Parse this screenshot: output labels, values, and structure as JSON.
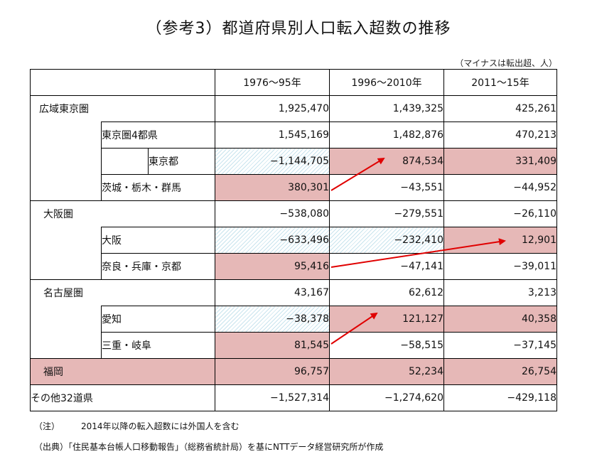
{
  "title": "（参考3）都道府県別人口転入超数の推移",
  "unit_note": "（マイナスは転出超、人）",
  "columns": [
    "1976～95年",
    "1996～2010年",
    "2011～15年"
  ],
  "rows": {
    "tokyo_area": {
      "label": "広域東京圏",
      "values": [
        "1,925,470",
        "1,439,325",
        "425,261"
      ]
    },
    "tokyo4": {
      "label": "東京圏4都県",
      "values": [
        "1,545,169",
        "1,482,876",
        "470,213"
      ]
    },
    "tokyo": {
      "label": "東京都",
      "values": [
        "−1,144,705",
        "874,534",
        "331,409"
      ]
    },
    "ibaraki": {
      "label": "茨城・栃木・群馬",
      "values": [
        "380,301",
        "−43,551",
        "−44,952"
      ]
    },
    "osaka_area": {
      "label": "大阪圏",
      "values": [
        "−538,080",
        "−279,551",
        "−26,110"
      ]
    },
    "osaka": {
      "label": "大阪",
      "values": [
        "−633,496",
        "−232,410",
        "12,901"
      ]
    },
    "nara": {
      "label": "奈良・兵庫・京都",
      "values": [
        "95,416",
        "−47,141",
        "−39,011"
      ]
    },
    "nagoya_area": {
      "label": "名古屋圏",
      "values": [
        "43,167",
        "62,612",
        "3,213"
      ]
    },
    "aichi": {
      "label": "愛知",
      "values": [
        "−38,378",
        "121,127",
        "40,358"
      ]
    },
    "mie": {
      "label": "三重・岐阜",
      "values": [
        "81,545",
        "−58,515",
        "−37,145"
      ]
    },
    "fukuoka": {
      "label": "福岡",
      "values": [
        "96,757",
        "52,234",
        "26,754"
      ]
    },
    "other": {
      "label": "その他32道県",
      "values": [
        "−1,527,314",
        "−1,274,620",
        "−429,118"
      ]
    }
  },
  "notes": {
    "note_label": "（注）",
    "note_text": "2014年以降の転入超数には外国人を含む",
    "source": "（出典）「住民基本台帳人口移動報告」（総務省統計局）を基にNTTデータ経営研究所が作成"
  },
  "colors": {
    "highlight": "#e6b8b7",
    "hatch": "#c9e4ee",
    "arrow": "#e00000"
  }
}
